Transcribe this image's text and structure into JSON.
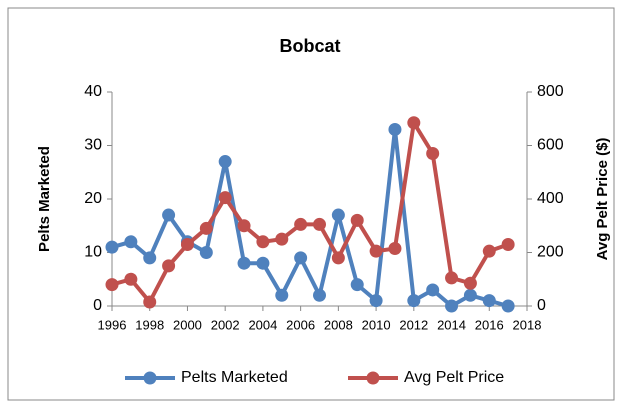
{
  "chart_data": {
    "type": "line",
    "title": "Bobcat",
    "x": [
      1996,
      1997,
      1998,
      1999,
      2000,
      2001,
      2002,
      2003,
      2004,
      2005,
      2006,
      2007,
      2008,
      2009,
      2010,
      2011,
      2012,
      2013,
      2014,
      2015,
      2016,
      2017
    ],
    "series": [
      {
        "name": "Pelts Marketed",
        "color": "#4f81bd",
        "values": [
          11,
          12,
          9,
          17,
          12,
          10,
          27,
          8,
          8,
          2,
          9,
          2,
          17,
          4,
          1,
          33,
          1,
          3,
          0,
          2,
          1,
          0
        ]
      },
      {
        "name": "Avg Pelt Price",
        "color": "#c0504d",
        "axis": "y2",
        "values": [
          80,
          100,
          15,
          150,
          230,
          290,
          405,
          300,
          240,
          250,
          305,
          305,
          180,
          320,
          205,
          215,
          685,
          570,
          105,
          85,
          205,
          230
        ]
      }
    ],
    "y_label": "Pelts Marketed",
    "y2_label": "Avg Pelt Price ($)",
    "xlim": [
      1996,
      2018
    ],
    "xticks": [
      1996,
      1998,
      2000,
      2002,
      2004,
      2006,
      2008,
      2010,
      2012,
      2014,
      2016,
      2018
    ],
    "ylim": [
      0,
      40
    ],
    "yticks": [
      0,
      10,
      20,
      30,
      40
    ],
    "y2lim": [
      0,
      800
    ],
    "y2ticks": [
      0,
      200,
      400,
      600,
      800
    ],
    "grid": false,
    "legend": "bottom"
  }
}
